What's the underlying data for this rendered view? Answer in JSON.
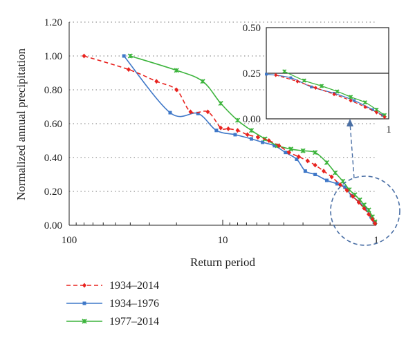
{
  "chart_data": {
    "type": "line",
    "xscale": "log",
    "x_reversed": true,
    "xlabel": "Return period",
    "ylabel": "Normalized annual precipitation",
    "xlim": [
      100,
      1
    ],
    "ylim": [
      0,
      1.2
    ],
    "x_ticks": [
      "100",
      "10",
      "1"
    ],
    "y_ticks": [
      "0.00",
      "0.20",
      "0.40",
      "0.60",
      "0.80",
      "1.00",
      "1.20"
    ],
    "grid": "horizontal dotted",
    "legend_position": "bottom-left, below the plot",
    "series": [
      {
        "name": "1934–2014",
        "color": "#e8231f",
        "line": "dashed",
        "marker": "diamond",
        "points": [
          [
            80,
            1.0
          ],
          [
            41,
            0.92
          ],
          [
            27,
            0.85
          ],
          [
            20,
            0.8
          ],
          [
            16.2,
            0.67
          ],
          [
            12.5,
            0.67
          ],
          [
            10.3,
            0.575
          ],
          [
            9.2,
            0.57
          ],
          [
            8.0,
            0.56
          ],
          [
            6.9,
            0.535
          ],
          [
            5.9,
            0.52
          ],
          [
            5.0,
            0.5
          ],
          [
            4.3,
            0.47
          ],
          [
            3.7,
            0.43
          ],
          [
            3.2,
            0.405
          ],
          [
            2.8,
            0.38
          ],
          [
            2.5,
            0.355
          ],
          [
            2.2,
            0.32
          ],
          [
            1.95,
            0.285
          ],
          [
            1.72,
            0.24
          ],
          [
            1.55,
            0.205
          ],
          [
            1.42,
            0.17
          ],
          [
            1.3,
            0.135
          ],
          [
            1.2,
            0.1
          ],
          [
            1.12,
            0.065
          ],
          [
            1.06,
            0.035
          ],
          [
            1.02,
            0.01
          ]
        ]
      },
      {
        "name": "1934–1976",
        "color": "#3f78c8",
        "line": "solid",
        "marker": "square",
        "points": [
          [
            44,
            1.0
          ],
          [
            22,
            0.665
          ],
          [
            14.5,
            0.66
          ],
          [
            11.0,
            0.56
          ],
          [
            8.3,
            0.535
          ],
          [
            6.5,
            0.51
          ],
          [
            5.5,
            0.49
          ],
          [
            4.6,
            0.47
          ],
          [
            3.9,
            0.43
          ],
          [
            3.3,
            0.39
          ],
          [
            2.9,
            0.32
          ],
          [
            2.5,
            0.3
          ],
          [
            2.1,
            0.265
          ],
          [
            1.8,
            0.245
          ],
          [
            1.6,
            0.225
          ],
          [
            1.45,
            0.175
          ],
          [
            1.3,
            0.14
          ],
          [
            1.18,
            0.1
          ],
          [
            1.08,
            0.05
          ],
          [
            1.03,
            0.02
          ]
        ]
      },
      {
        "name": "1977–2014",
        "color": "#3cb43c",
        "line": "solid",
        "marker": "star",
        "points": [
          [
            40,
            1.0
          ],
          [
            20,
            0.915
          ],
          [
            13.5,
            0.85
          ],
          [
            10.3,
            0.72
          ],
          [
            8.0,
            0.62
          ],
          [
            6.5,
            0.56
          ],
          [
            5.3,
            0.51
          ],
          [
            4.4,
            0.47
          ],
          [
            3.6,
            0.45
          ],
          [
            3.0,
            0.44
          ],
          [
            2.5,
            0.43
          ],
          [
            2.1,
            0.37
          ],
          [
            1.85,
            0.31
          ],
          [
            1.65,
            0.26
          ],
          [
            1.5,
            0.21
          ],
          [
            1.38,
            0.18
          ],
          [
            1.28,
            0.15
          ],
          [
            1.2,
            0.12
          ],
          [
            1.12,
            0.09
          ],
          [
            1.06,
            0.05
          ],
          [
            1.02,
            0.02
          ]
        ]
      }
    ],
    "inset": {
      "x_ticks": [
        "1"
      ],
      "y_ticks": [
        "0.00",
        "0.25",
        "0.50"
      ],
      "ylim": [
        0,
        0.5
      ],
      "xlim": [
        1.8,
        1
      ],
      "reference_line_y": 0.25
    }
  }
}
